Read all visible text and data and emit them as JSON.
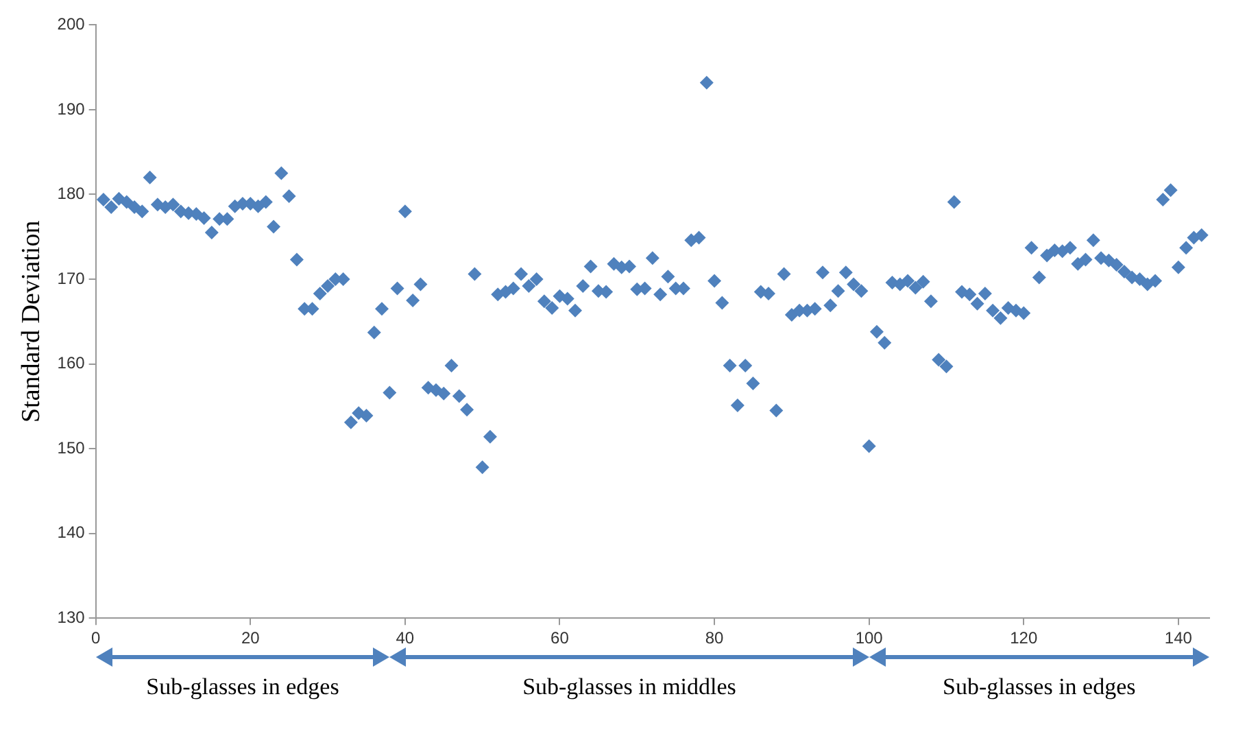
{
  "chart_data": {
    "type": "scatter",
    "ylabel": "Standard Deviation",
    "marker": "diamond",
    "grid": false,
    "legend": false,
    "xlim": [
      0,
      144
    ],
    "xticks": [
      0,
      20,
      40,
      60,
      80,
      100,
      120,
      140
    ],
    "ylim": [
      130,
      200
    ],
    "yticks": [
      130,
      140,
      150,
      160,
      170,
      180,
      190,
      200
    ],
    "annotations": [
      "Sub-glasses in edges",
      "Sub-glasses in middles",
      "Sub-glasses in edges"
    ],
    "series": [
      {
        "color": "#4f81bd",
        "x": [
          1,
          2,
          3,
          4,
          5,
          6,
          7,
          8,
          9,
          10,
          11,
          12,
          13,
          14,
          15,
          16,
          17,
          18,
          19,
          20,
          21,
          22,
          23,
          24,
          25,
          26,
          27,
          28,
          29,
          30,
          31,
          32,
          33,
          34,
          35,
          36,
          37,
          38,
          39,
          40,
          41,
          42,
          43,
          44,
          45,
          46,
          47,
          48,
          49,
          50,
          51,
          52,
          53,
          54,
          55,
          56,
          57,
          58,
          59,
          60,
          61,
          62,
          63,
          64,
          65,
          66,
          67,
          68,
          69,
          70,
          71,
          72,
          73,
          74,
          75,
          76,
          77,
          78,
          79,
          80,
          81,
          82,
          83,
          84,
          85,
          86,
          87,
          88,
          89,
          90,
          91,
          92,
          93,
          94,
          95,
          96,
          97,
          98,
          99,
          100,
          101,
          102,
          103,
          104,
          105,
          106,
          107,
          108,
          109,
          110,
          111,
          112,
          113,
          114,
          115,
          116,
          117,
          118,
          119,
          120,
          121,
          122,
          123,
          124,
          125,
          126,
          127,
          128,
          129,
          130,
          131,
          132,
          133,
          134,
          135,
          136,
          137,
          138,
          139,
          140,
          141,
          142,
          143
        ],
        "values": [
          179.4,
          178.5,
          179.5,
          179.1,
          178.5,
          178.0,
          182.0,
          178.8,
          178.5,
          178.8,
          178.0,
          177.8,
          177.7,
          177.2,
          175.5,
          177.1,
          177.1,
          178.6,
          178.9,
          178.9,
          178.6,
          179.1,
          176.2,
          182.5,
          179.8,
          172.3,
          166.5,
          166.5,
          168.3,
          169.2,
          170.0,
          170.0,
          153.1,
          154.2,
          153.9,
          163.7,
          166.5,
          156.6,
          168.9,
          178.0,
          167.5,
          169.4,
          157.2,
          156.9,
          156.5,
          159.8,
          156.2,
          154.6,
          170.6,
          147.8,
          151.4,
          168.2,
          168.5,
          168.9,
          170.6,
          169.2,
          170.0,
          167.4,
          166.6,
          168.0,
          167.7,
          166.3,
          169.2,
          171.5,
          168.6,
          168.5,
          171.8,
          171.4,
          171.5,
          168.8,
          168.9,
          172.5,
          168.2,
          170.3,
          168.9,
          168.9,
          174.6,
          174.9,
          193.2,
          169.8,
          167.2,
          159.8,
          155.1,
          159.8,
          157.7,
          168.5,
          168.3,
          154.5,
          170.6,
          165.8,
          166.3,
          166.3,
          166.5,
          170.8,
          166.9,
          168.6,
          170.8,
          169.4,
          168.6,
          150.3,
          163.8,
          162.5,
          169.6,
          169.4,
          169.8,
          169.0,
          169.7,
          167.4,
          160.5,
          159.7,
          179.1,
          168.5,
          168.2,
          167.1,
          168.3,
          166.3,
          165.4,
          166.6,
          166.3,
          166.0,
          173.7,
          170.2,
          172.8,
          173.4,
          173.3,
          173.7,
          171.8,
          172.3,
          174.6,
          172.5,
          172.2,
          171.7,
          170.9,
          170.2,
          170.0,
          169.4,
          169.8,
          179.4,
          180.5,
          171.4,
          173.7,
          174.9,
          175.2
        ]
      }
    ]
  }
}
